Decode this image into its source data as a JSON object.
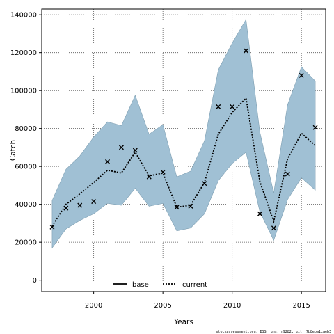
{
  "chart_data": {
    "type": "line",
    "xlabel": "Years",
    "ylabel": "Catch",
    "xlim": [
      1996.25,
      2016.75
    ],
    "ylim": [
      -6000,
      143000
    ],
    "xticks": [
      2000,
      2005,
      2010,
      2015
    ],
    "yticks": [
      0,
      20000,
      40000,
      60000,
      80000,
      100000,
      120000,
      140000
    ],
    "xtick_labels": [
      "2000",
      "2005",
      "2010",
      "2015"
    ],
    "ytick_labels": [
      "0",
      "20000",
      "40000",
      "60000",
      "80000",
      "100000",
      "120000",
      "140000"
    ],
    "grid": true,
    "legend": {
      "position": "bottom-center",
      "entries": [
        "base",
        "current"
      ]
    },
    "footer": "stockassessment.org, BSS runs, r9282, git: 7b8eba1caeb3",
    "x": [
      1997,
      1998,
      1999,
      2000,
      2001,
      2002,
      2003,
      2004,
      2005,
      2006,
      2007,
      2008,
      2009,
      2010,
      2011,
      2012,
      2013,
      2014,
      2015,
      2016
    ],
    "series": [
      {
        "name": "current",
        "style": "dotted-line",
        "color": "#000000",
        "values": [
          28500,
          40000,
          45500,
          51500,
          58000,
          56500,
          67500,
          55000,
          56500,
          38500,
          39500,
          51500,
          77000,
          88500,
          96000,
          52000,
          31000,
          64000,
          77500,
          71000
        ]
      },
      {
        "name": "band",
        "style": "shaded-band",
        "color": "#a0c0d4",
        "lower": [
          17000,
          27000,
          31500,
          35000,
          40500,
          39500,
          48500,
          39000,
          40500,
          26000,
          27500,
          35000,
          52500,
          61500,
          67500,
          36000,
          21000,
          42500,
          54000,
          47500
        ],
        "upper": [
          42000,
          58500,
          65500,
          75500,
          83500,
          81500,
          97500,
          77000,
          82000,
          54500,
          57500,
          73500,
          111000,
          125000,
          137500,
          78000,
          46000,
          92500,
          112500,
          105000
        ]
      },
      {
        "name": "observed",
        "style": "x-markers",
        "color": "#000000",
        "values": [
          28000,
          38000,
          39500,
          41500,
          62500,
          70000,
          68500,
          54500,
          57000,
          38500,
          39000,
          51000,
          91500,
          91500,
          121000,
          35000,
          27500,
          56000,
          108000,
          80500
        ]
      }
    ]
  }
}
